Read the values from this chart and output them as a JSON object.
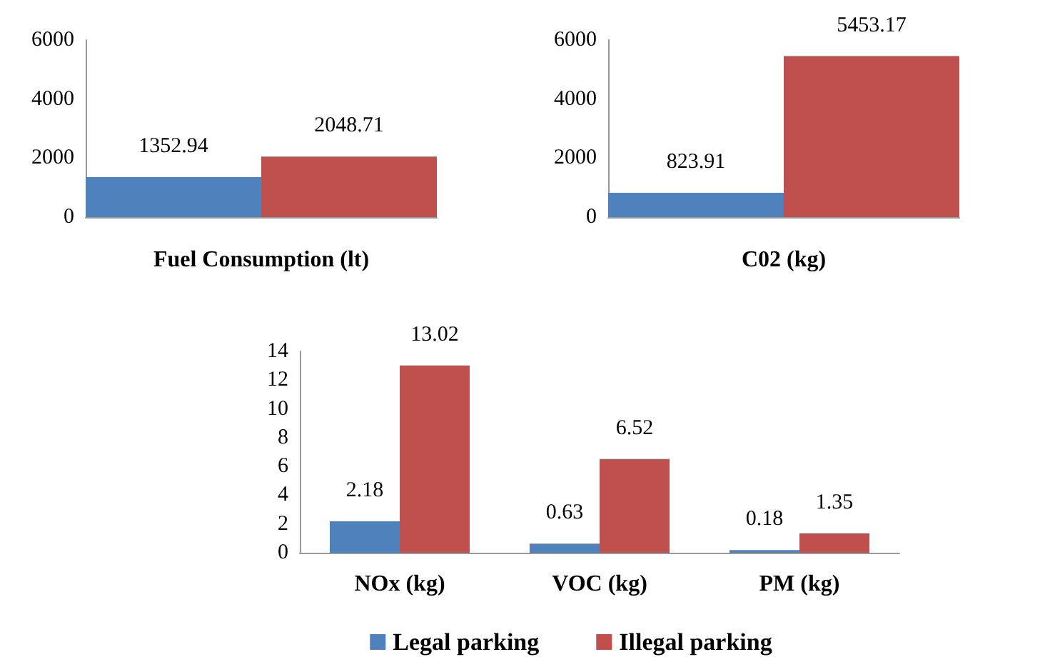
{
  "chart_data": [
    {
      "type": "bar",
      "xlabel": "Fuel Consumption (lt)",
      "categories": [
        null,
        null
      ],
      "values": [
        1352.94,
        2048.71
      ],
      "colors": [
        "#4f81bd",
        "#c0504d"
      ],
      "ylim": [
        0,
        6000
      ],
      "yticks": [
        0,
        2000,
        4000,
        6000
      ],
      "data_labels": true,
      "grid": false,
      "legend": false
    },
    {
      "type": "bar",
      "xlabel": "C02 (kg)",
      "categories": [
        null,
        null
      ],
      "values": [
        823.91,
        5453.17
      ],
      "colors": [
        "#4f81bd",
        "#c0504d"
      ],
      "ylim": [
        0,
        6000
      ],
      "yticks": [
        0,
        2000,
        4000,
        6000
      ],
      "data_labels": true,
      "grid": false,
      "legend": false
    },
    {
      "type": "bar",
      "categories": [
        "NOx (kg)",
        "VOC (kg)",
        "PM (kg)"
      ],
      "series": [
        {
          "name": "Legal parking",
          "color": "#4f81bd",
          "values": [
            2.18,
            0.63,
            0.18
          ]
        },
        {
          "name": "Illegal parking",
          "color": "#c0504d",
          "values": [
            13.02,
            6.52,
            1.35
          ]
        }
      ],
      "ylim": [
        0,
        14
      ],
      "yticks": [
        0,
        2,
        4,
        6,
        8,
        10,
        12,
        14
      ],
      "data_labels": true,
      "grid": false,
      "legend": "bottom"
    }
  ]
}
